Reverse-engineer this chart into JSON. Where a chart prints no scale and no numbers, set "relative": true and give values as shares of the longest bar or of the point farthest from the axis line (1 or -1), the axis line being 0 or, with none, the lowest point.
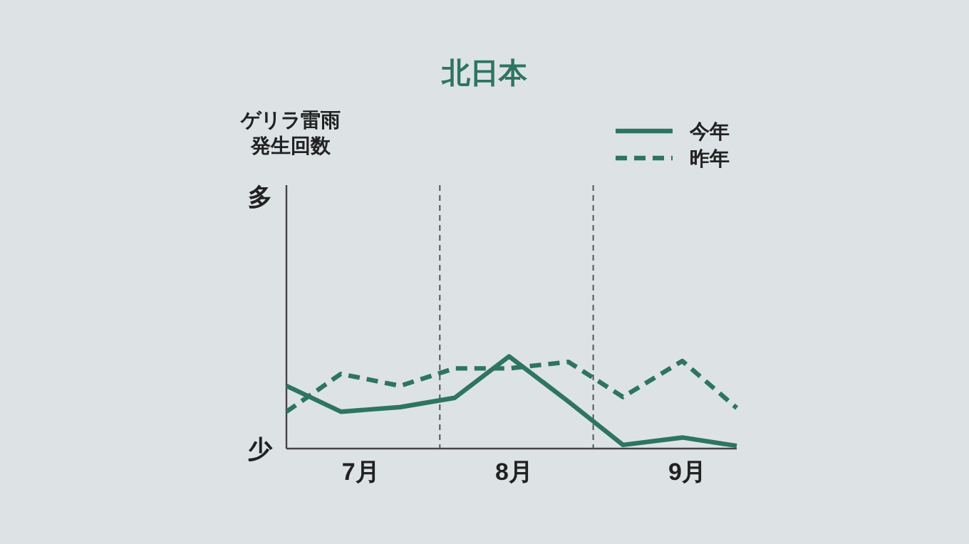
{
  "chart_data": {
    "type": "line",
    "title": "北日本",
    "relative": true,
    "legend": "top right",
    "grid": false,
    "marker": "none",
    "x": [
      "--07-01",
      "--07-12",
      "--07-24",
      "--08-04",
      "--08-15",
      "--08-27",
      "--09-07",
      "--09-19",
      "--09-30"
    ],
    "xlim": [
      "--07-01",
      "--09-30"
    ],
    "xticks": [
      {
        "value": "--07-16",
        "label": "7月"
      },
      {
        "value": "--08-16",
        "label": "8月"
      },
      {
        "value": "--09-20",
        "label": "9月"
      }
    ],
    "series": [
      {
        "name": "今年",
        "color": "#2e7560",
        "line_style": "solid",
        "values": [
          0.68,
          0.4,
          0.45,
          0.55,
          1,
          0.51,
          0.04,
          0.12,
          0.03
        ]
      },
      {
        "name": "昨年",
        "color": "#2e7560",
        "line_style": "dashed",
        "values": [
          0.4,
          0.81,
          0.68,
          0.87,
          0.87,
          0.94,
          0.56,
          0.95,
          0.44
        ]
      }
    ],
    "ref_lines": [
      {
        "axis": "x",
        "value": "--08-01",
        "color": "#555555",
        "line_style": "dashed"
      },
      {
        "axis": "x",
        "value": "--09-01",
        "color": "#555555",
        "line_style": "dashed"
      }
    ],
    "annotations": [
      "ゲリラ雷雨発生回数",
      "多",
      "少"
    ]
  }
}
